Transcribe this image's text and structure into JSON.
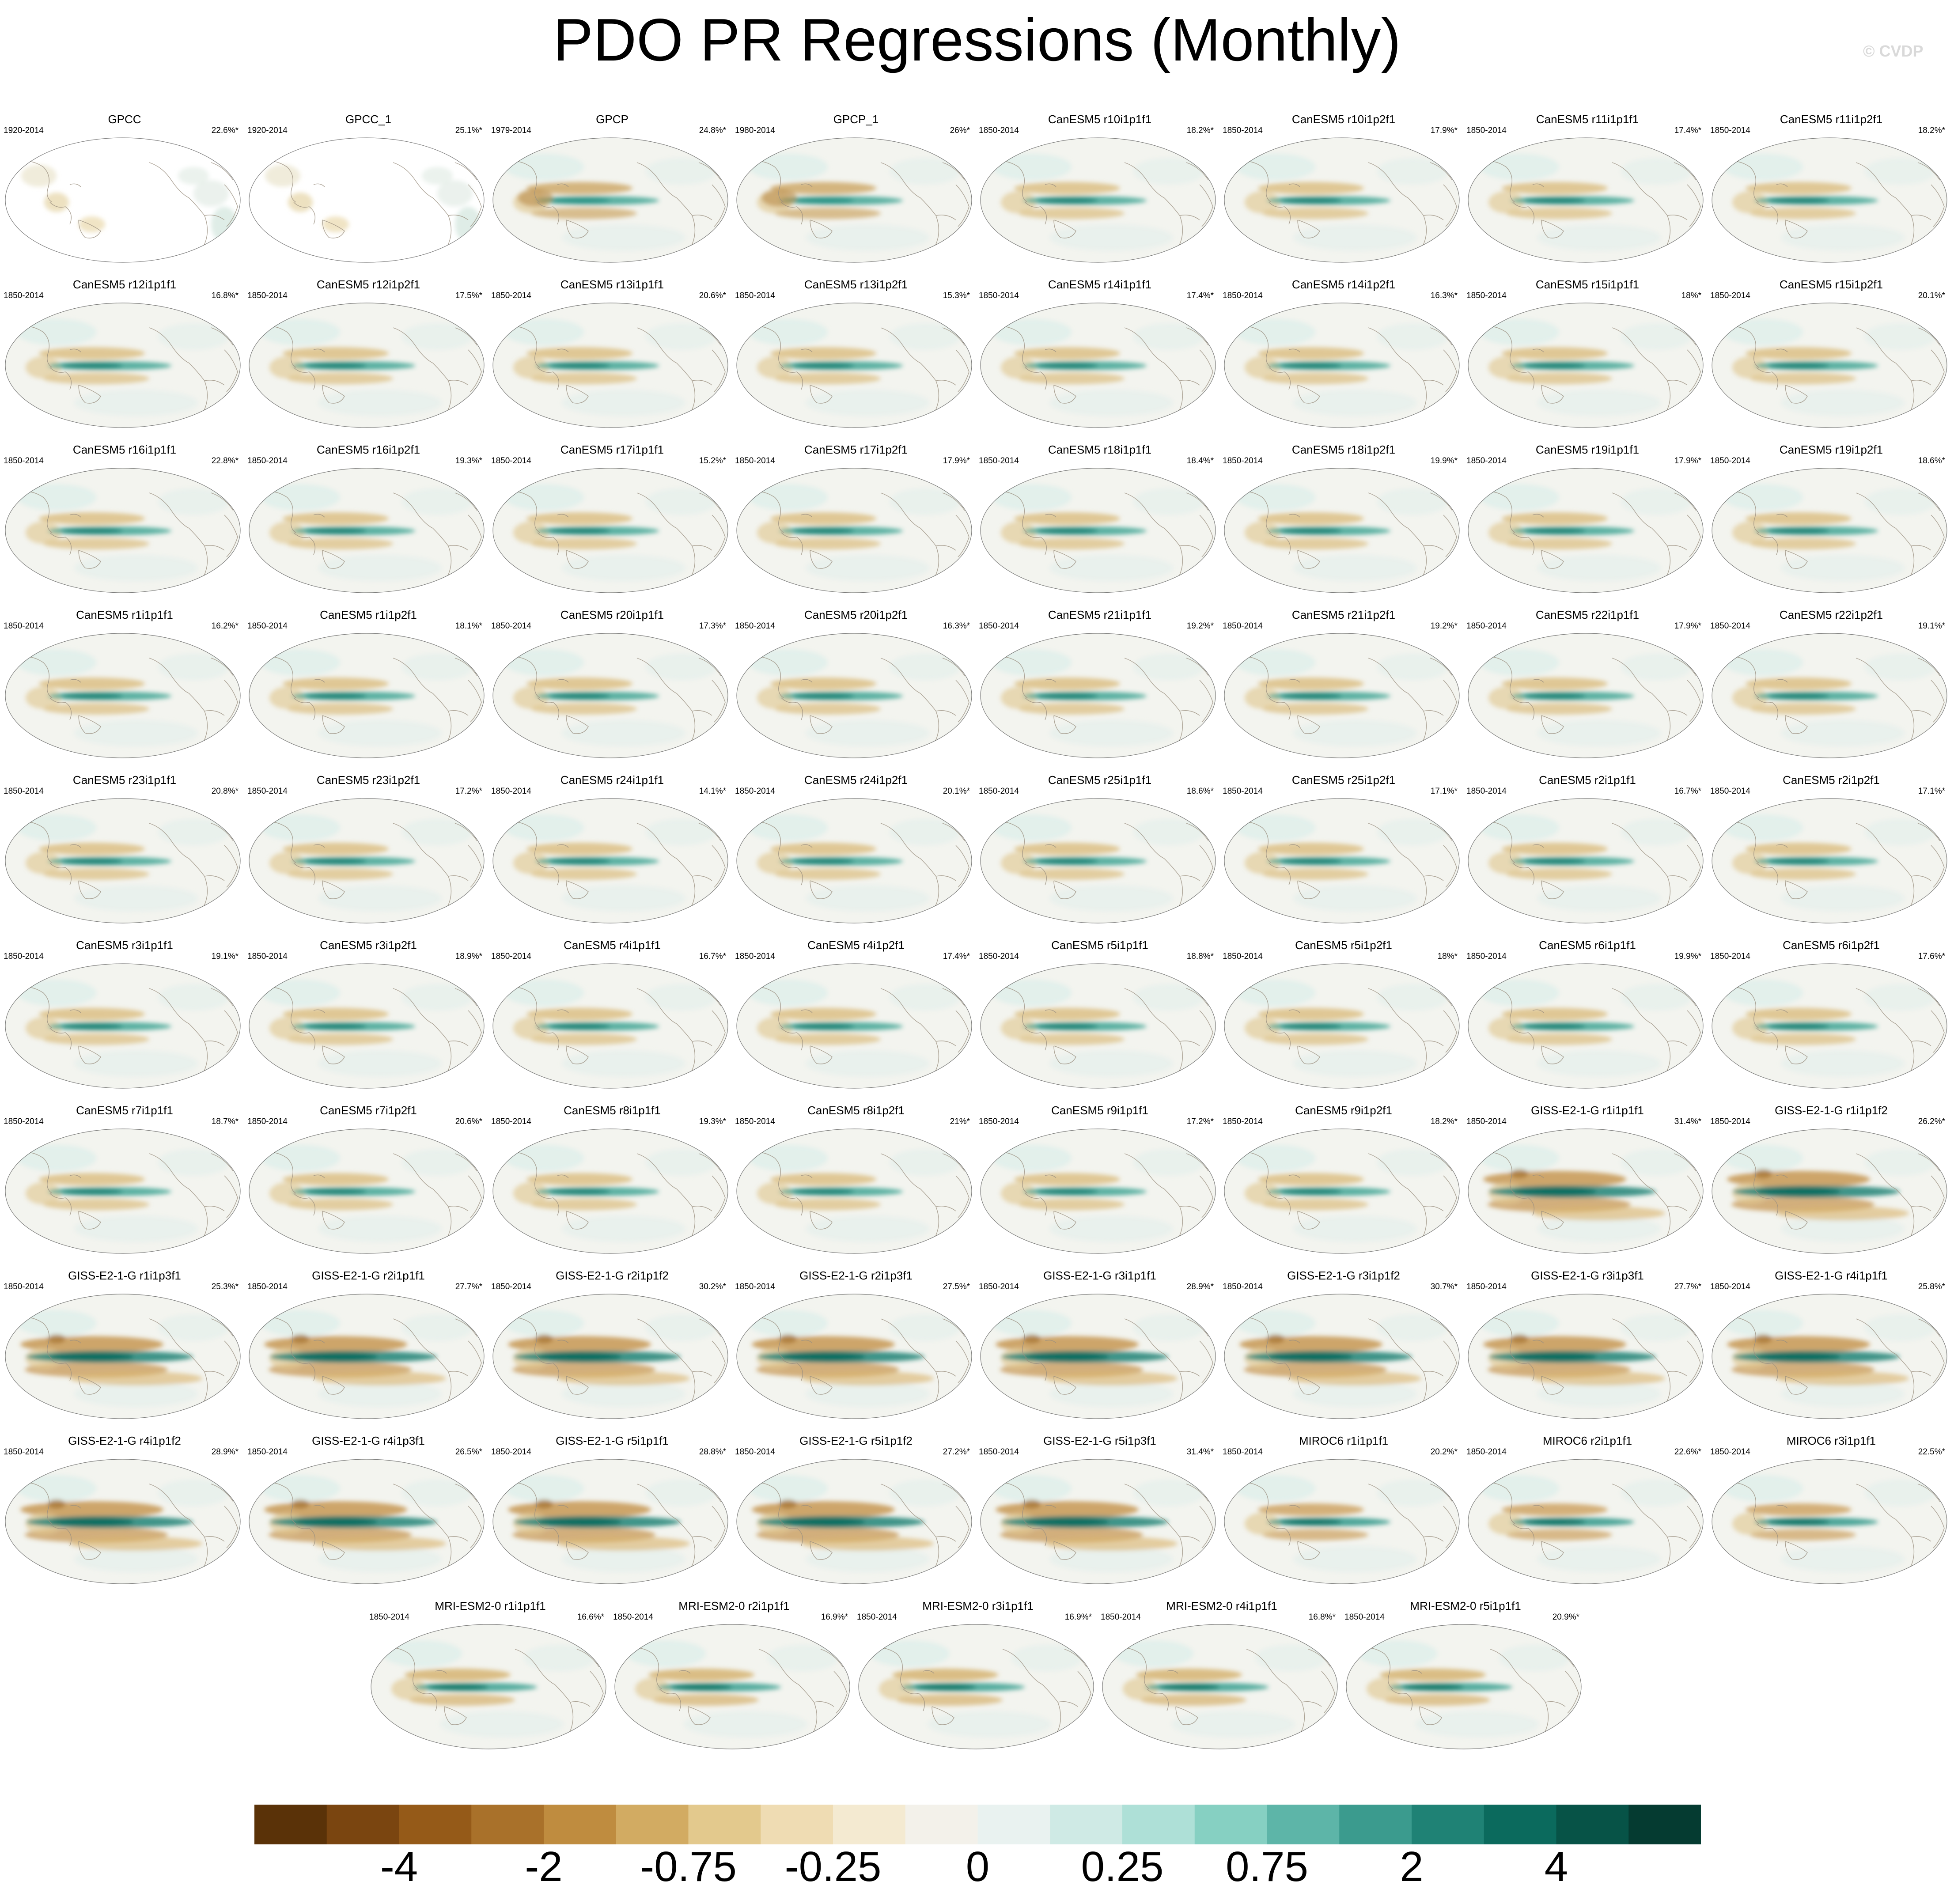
{
  "title": "PDO PR Regressions (Monthly)",
  "watermark": "© CVDP",
  "panels": [
    {
      "name": "GPCC",
      "years": "1920-2014",
      "pct": "22.6%*",
      "style": "obs"
    },
    {
      "name": "GPCC_1",
      "years": "1920-2014",
      "pct": "25.1%*",
      "style": "obs"
    },
    {
      "name": "GPCP",
      "years": "1979-2014",
      "pct": "24.8%*",
      "style": "gpcp"
    },
    {
      "name": "GPCP_1",
      "years": "1980-2014",
      "pct": "26%*",
      "style": "gpcp"
    },
    {
      "name": "CanESM5 r10i1p1f1",
      "years": "1850-2014",
      "pct": "18.2%*",
      "style": "can"
    },
    {
      "name": "CanESM5 r10i1p2f1",
      "years": "1850-2014",
      "pct": "17.9%*",
      "style": "can"
    },
    {
      "name": "CanESM5 r11i1p1f1",
      "years": "1850-2014",
      "pct": "17.4%*",
      "style": "can"
    },
    {
      "name": "CanESM5 r11i1p2f1",
      "years": "1850-2014",
      "pct": "18.2%*",
      "style": "can"
    },
    {
      "name": "CanESM5 r12i1p1f1",
      "years": "1850-2014",
      "pct": "16.8%*",
      "style": "can"
    },
    {
      "name": "CanESM5 r12i1p2f1",
      "years": "1850-2014",
      "pct": "17.5%*",
      "style": "can"
    },
    {
      "name": "CanESM5 r13i1p1f1",
      "years": "1850-2014",
      "pct": "20.6%*",
      "style": "can"
    },
    {
      "name": "CanESM5 r13i1p2f1",
      "years": "1850-2014",
      "pct": "15.3%*",
      "style": "can"
    },
    {
      "name": "CanESM5 r14i1p1f1",
      "years": "1850-2014",
      "pct": "17.4%*",
      "style": "can"
    },
    {
      "name": "CanESM5 r14i1p2f1",
      "years": "1850-2014",
      "pct": "16.3%*",
      "style": "can"
    },
    {
      "name": "CanESM5 r15i1p1f1",
      "years": "1850-2014",
      "pct": "18%*",
      "style": "can"
    },
    {
      "name": "CanESM5 r15i1p2f1",
      "years": "1850-2014",
      "pct": "20.1%*",
      "style": "can"
    },
    {
      "name": "CanESM5 r16i1p1f1",
      "years": "1850-2014",
      "pct": "22.8%*",
      "style": "can"
    },
    {
      "name": "CanESM5 r16i1p2f1",
      "years": "1850-2014",
      "pct": "19.3%*",
      "style": "can"
    },
    {
      "name": "CanESM5 r17i1p1f1",
      "years": "1850-2014",
      "pct": "15.2%*",
      "style": "can"
    },
    {
      "name": "CanESM5 r17i1p2f1",
      "years": "1850-2014",
      "pct": "17.9%*",
      "style": "can"
    },
    {
      "name": "CanESM5 r18i1p1f1",
      "years": "1850-2014",
      "pct": "18.4%*",
      "style": "can"
    },
    {
      "name": "CanESM5 r18i1p2f1",
      "years": "1850-2014",
      "pct": "19.9%*",
      "style": "can"
    },
    {
      "name": "CanESM5 r19i1p1f1",
      "years": "1850-2014",
      "pct": "17.9%*",
      "style": "can"
    },
    {
      "name": "CanESM5 r19i1p2f1",
      "years": "1850-2014",
      "pct": "18.6%*",
      "style": "can"
    },
    {
      "name": "CanESM5 r1i1p1f1",
      "years": "1850-2014",
      "pct": "16.2%*",
      "style": "can"
    },
    {
      "name": "CanESM5 r1i1p2f1",
      "years": "1850-2014",
      "pct": "18.1%*",
      "style": "can"
    },
    {
      "name": "CanESM5 r20i1p1f1",
      "years": "1850-2014",
      "pct": "17.3%*",
      "style": "can"
    },
    {
      "name": "CanESM5 r20i1p2f1",
      "years": "1850-2014",
      "pct": "16.3%*",
      "style": "can"
    },
    {
      "name": "CanESM5 r21i1p1f1",
      "years": "1850-2014",
      "pct": "19.2%*",
      "style": "can"
    },
    {
      "name": "CanESM5 r21i1p2f1",
      "years": "1850-2014",
      "pct": "19.2%*",
      "style": "can"
    },
    {
      "name": "CanESM5 r22i1p1f1",
      "years": "1850-2014",
      "pct": "17.9%*",
      "style": "can"
    },
    {
      "name": "CanESM5 r22i1p2f1",
      "years": "1850-2014",
      "pct": "19.1%*",
      "style": "can"
    },
    {
      "name": "CanESM5 r23i1p1f1",
      "years": "1850-2014",
      "pct": "20.8%*",
      "style": "can"
    },
    {
      "name": "CanESM5 r23i1p2f1",
      "years": "1850-2014",
      "pct": "17.2%*",
      "style": "can"
    },
    {
      "name": "CanESM5 r24i1p1f1",
      "years": "1850-2014",
      "pct": "14.1%*",
      "style": "can"
    },
    {
      "name": "CanESM5 r24i1p2f1",
      "years": "1850-2014",
      "pct": "20.1%*",
      "style": "can"
    },
    {
      "name": "CanESM5 r25i1p1f1",
      "years": "1850-2014",
      "pct": "18.6%*",
      "style": "can"
    },
    {
      "name": "CanESM5 r25i1p2f1",
      "years": "1850-2014",
      "pct": "17.1%*",
      "style": "can"
    },
    {
      "name": "CanESM5 r2i1p1f1",
      "years": "1850-2014",
      "pct": "16.7%*",
      "style": "can"
    },
    {
      "name": "CanESM5 r2i1p2f1",
      "years": "1850-2014",
      "pct": "17.1%*",
      "style": "can"
    },
    {
      "name": "CanESM5 r3i1p1f1",
      "years": "1850-2014",
      "pct": "19.1%*",
      "style": "can"
    },
    {
      "name": "CanESM5 r3i1p2f1",
      "years": "1850-2014",
      "pct": "18.9%*",
      "style": "can"
    },
    {
      "name": "CanESM5 r4i1p1f1",
      "years": "1850-2014",
      "pct": "16.7%*",
      "style": "can"
    },
    {
      "name": "CanESM5 r4i1p2f1",
      "years": "1850-2014",
      "pct": "17.4%*",
      "style": "can"
    },
    {
      "name": "CanESM5 r5i1p1f1",
      "years": "1850-2014",
      "pct": "18.8%*",
      "style": "can"
    },
    {
      "name": "CanESM5 r5i1p2f1",
      "years": "1850-2014",
      "pct": "18%*",
      "style": "can"
    },
    {
      "name": "CanESM5 r6i1p1f1",
      "years": "1850-2014",
      "pct": "19.9%*",
      "style": "can"
    },
    {
      "name": "CanESM5 r6i1p2f1",
      "years": "1850-2014",
      "pct": "17.6%*",
      "style": "can"
    },
    {
      "name": "CanESM5 r7i1p1f1",
      "years": "1850-2014",
      "pct": "18.7%*",
      "style": "can"
    },
    {
      "name": "CanESM5 r7i1p2f1",
      "years": "1850-2014",
      "pct": "20.6%*",
      "style": "can"
    },
    {
      "name": "CanESM5 r8i1p1f1",
      "years": "1850-2014",
      "pct": "19.3%*",
      "style": "can"
    },
    {
      "name": "CanESM5 r8i1p2f1",
      "years": "1850-2014",
      "pct": "21%*",
      "style": "can"
    },
    {
      "name": "CanESM5 r9i1p1f1",
      "years": "1850-2014",
      "pct": "17.2%*",
      "style": "can"
    },
    {
      "name": "CanESM5 r9i1p2f1",
      "years": "1850-2014",
      "pct": "18.2%*",
      "style": "can"
    },
    {
      "name": "GISS-E2-1-G r1i1p1f1",
      "years": "1850-2014",
      "pct": "31.4%*",
      "style": "giss"
    },
    {
      "name": "GISS-E2-1-G r1i1p1f2",
      "years": "1850-2014",
      "pct": "26.2%*",
      "style": "giss"
    },
    {
      "name": "GISS-E2-1-G r1i1p3f1",
      "years": "1850-2014",
      "pct": "25.3%*",
      "style": "giss"
    },
    {
      "name": "GISS-E2-1-G r2i1p1f1",
      "years": "1850-2014",
      "pct": "27.7%*",
      "style": "giss"
    },
    {
      "name": "GISS-E2-1-G r2i1p1f2",
      "years": "1850-2014",
      "pct": "30.2%*",
      "style": "giss"
    },
    {
      "name": "GISS-E2-1-G r2i1p3f1",
      "years": "1850-2014",
      "pct": "27.5%*",
      "style": "giss"
    },
    {
      "name": "GISS-E2-1-G r3i1p1f1",
      "years": "1850-2014",
      "pct": "28.9%*",
      "style": "giss"
    },
    {
      "name": "GISS-E2-1-G r3i1p1f2",
      "years": "1850-2014",
      "pct": "30.7%*",
      "style": "giss"
    },
    {
      "name": "GISS-E2-1-G r3i1p3f1",
      "years": "1850-2014",
      "pct": "27.7%*",
      "style": "giss"
    },
    {
      "name": "GISS-E2-1-G r4i1p1f1",
      "years": "1850-2014",
      "pct": "25.8%*",
      "style": "giss"
    },
    {
      "name": "GISS-E2-1-G r4i1p1f2",
      "years": "1850-2014",
      "pct": "28.9%*",
      "style": "giss"
    },
    {
      "name": "GISS-E2-1-G r4i1p3f1",
      "years": "1850-2014",
      "pct": "26.5%*",
      "style": "giss"
    },
    {
      "name": "GISS-E2-1-G r5i1p1f1",
      "years": "1850-2014",
      "pct": "28.8%*",
      "style": "giss"
    },
    {
      "name": "GISS-E2-1-G r5i1p1f2",
      "years": "1850-2014",
      "pct": "27.2%*",
      "style": "giss"
    },
    {
      "name": "GISS-E2-1-G r5i1p3f1",
      "years": "1850-2014",
      "pct": "31.4%*",
      "style": "giss"
    },
    {
      "name": "MIROC6 r1i1p1f1",
      "years": "1850-2014",
      "pct": "20.2%*",
      "style": "miroc"
    },
    {
      "name": "MIROC6 r2i1p1f1",
      "years": "1850-2014",
      "pct": "22.6%*",
      "style": "miroc"
    },
    {
      "name": "MIROC6 r3i1p1f1",
      "years": "1850-2014",
      "pct": "22.5%*",
      "style": "miroc"
    },
    {
      "name": "MRI-ESM2-0 r1i1p1f1",
      "years": "1850-2014",
      "pct": "16.6%*",
      "style": "mri"
    },
    {
      "name": "MRI-ESM2-0 r2i1p1f1",
      "years": "1850-2014",
      "pct": "16.9%*",
      "style": "mri"
    },
    {
      "name": "MRI-ESM2-0 r3i1p1f1",
      "years": "1850-2014",
      "pct": "16.9%*",
      "style": "mri"
    },
    {
      "name": "MRI-ESM2-0 r4i1p1f1",
      "years": "1850-2014",
      "pct": "16.8%*",
      "style": "mri"
    },
    {
      "name": "MRI-ESM2-0 r5i1p1f1",
      "years": "1850-2014",
      "pct": "20.9%*",
      "style": "mri"
    }
  ],
  "colorbar": {
    "colors": [
      "#5a3208",
      "#7a4510",
      "#955a18",
      "#a9712a",
      "#bf8c3f",
      "#d2ab62",
      "#e3c98d",
      "#efdcb3",
      "#f4ead1",
      "#f3f1ea",
      "#e9f2f0",
      "#cfeae5",
      "#aee0d7",
      "#86d0c2",
      "#5db5a8",
      "#3b9b8e",
      "#1f8275",
      "#0b6a5d",
      "#075347",
      "#053b31"
    ],
    "labels": [
      "-4",
      "-2",
      "-0.75",
      "-0.25",
      "0",
      "0.25",
      "0.75",
      "2",
      "4"
    ]
  }
}
